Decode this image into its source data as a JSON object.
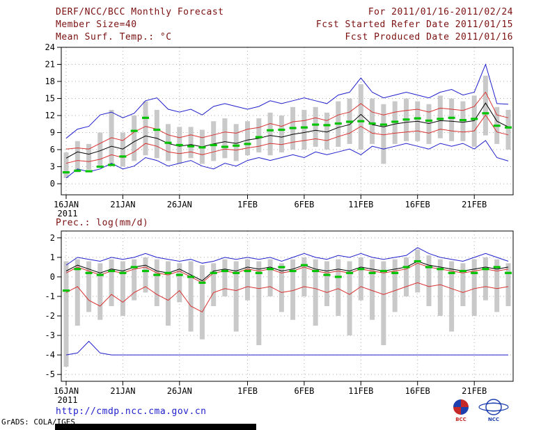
{
  "header": {
    "title": "DERF/NCC/BCC Monthly Forecast",
    "forecast_range": "For 2011/01/16-2011/02/24",
    "member_size": "Member Size=40",
    "refer_date": "Fcst Started Refer Date 2011/01/15",
    "produced_date": "Fcst Produced Date 2011/01/16"
  },
  "charts": {
    "temp_title": "Mean Surf. Temp.: °C",
    "precip_title": "Prec.: log(mm/d)"
  },
  "footer": {
    "url": "http://cmdp.ncc.cma.gov.cn",
    "credit": "GrADS: COLA/IGES",
    "logos": [
      {
        "name": "bcc-logo",
        "label": "BCC"
      },
      {
        "name": "ncc-logo",
        "label": "NCC"
      }
    ]
  },
  "colors": {
    "header_text": "#7c1010",
    "url_text": "#1e1ecc",
    "blue": "#1e1ecc",
    "red": "#d93030",
    "green": "#00c400",
    "black": "#000000",
    "bar": "#c9c9c9",
    "grid": "#aaaaaa"
  },
  "chart_data": [
    {
      "type": "line",
      "title": "Mean Surf. Temp.: °C",
      "ylabel": "°C",
      "n_days": 40,
      "x_tick_labels": [
        "16JAN",
        "21JAN",
        "26JAN",
        "1FEB",
        "6FEB",
        "11FEB",
        "16FEB",
        "21FEB"
      ],
      "x_tick_days": [
        0,
        5,
        10,
        16,
        21,
        26,
        31,
        36
      ],
      "x_year_label": "2011",
      "yticks": [
        0,
        3,
        6,
        9,
        12,
        15,
        18,
        21,
        24
      ],
      "ylim": [
        0,
        24
      ],
      "grid": "dotted",
      "series": [
        {
          "name": "ensemble-max",
          "color": "blue",
          "values": [
            8.0,
            9.6,
            10.1,
            12.1,
            12.6,
            11.6,
            12.4,
            14.6,
            15.1,
            13.1,
            12.6,
            13.1,
            12.1,
            13.6,
            14.1,
            13.6,
            13.1,
            13.6,
            14.6,
            14.1,
            14.6,
            15.1,
            14.6,
            14.1,
            15.6,
            16.1,
            18.6,
            16.1,
            15.1,
            15.6,
            16.1,
            15.6,
            15.1,
            16.1,
            16.6,
            15.6,
            16.1,
            21.0,
            14.1,
            14.0
          ]
        },
        {
          "name": "ensemble-min",
          "color": "blue",
          "values": [
            1.0,
            2.6,
            2.1,
            2.6,
            3.6,
            2.6,
            3.1,
            4.6,
            4.1,
            3.1,
            3.6,
            4.1,
            3.1,
            2.6,
            3.6,
            3.1,
            4.1,
            4.6,
            4.1,
            4.6,
            5.1,
            4.6,
            5.6,
            5.1,
            5.6,
            6.1,
            5.1,
            6.6,
            6.1,
            6.6,
            7.1,
            6.6,
            6.1,
            7.1,
            6.6,
            7.1,
            6.1,
            7.6,
            4.6,
            4.0
          ]
        },
        {
          "name": "upper-quartile",
          "color": "red",
          "values": [
            6.1,
            6.3,
            6.1,
            7.1,
            8.1,
            7.6,
            9.1,
            10.1,
            9.6,
            8.6,
            8.1,
            8.6,
            8.1,
            8.6,
            9.1,
            8.9,
            9.6,
            9.9,
            10.6,
            10.1,
            10.9,
            11.1,
            11.6,
            11.1,
            12.1,
            12.6,
            14.1,
            12.6,
            12.1,
            12.6,
            12.9,
            13.1,
            12.6,
            13.3,
            13.1,
            12.9,
            13.6,
            16.1,
            12.1,
            11.6
          ]
        },
        {
          "name": "lower-quartile",
          "color": "red",
          "values": [
            3.6,
            4.1,
            3.9,
            4.3,
            5.1,
            4.6,
            5.6,
            7.1,
            6.6,
            5.6,
            5.3,
            5.6,
            5.1,
            5.6,
            6.1,
            5.9,
            6.3,
            6.6,
            7.1,
            6.9,
            7.3,
            7.6,
            7.9,
            7.6,
            8.3,
            8.9,
            10.1,
            8.9,
            8.6,
            8.9,
            9.1,
            9.3,
            8.9,
            9.6,
            9.3,
            9.1,
            9.3,
            12.1,
            9.1,
            8.6
          ]
        },
        {
          "name": "ensemble-mean",
          "color": "black",
          "values": [
            4.5,
            5.6,
            5.2,
            5.8,
            6.6,
            6.1,
            7.4,
            8.4,
            8.0,
            7.1,
            6.6,
            6.9,
            6.5,
            7.0,
            7.4,
            7.1,
            7.7,
            8.0,
            8.5,
            8.2,
            8.7,
            9.0,
            9.4,
            9.1,
            9.9,
            10.4,
            12.2,
            10.4,
            10.0,
            10.5,
            10.8,
            11.0,
            10.6,
            11.1,
            11.0,
            10.8,
            11.1,
            14.2,
            11.0,
            10.0
          ]
        },
        {
          "name": "observation",
          "color": "green",
          "style": "dashes",
          "values": [
            2.0,
            2.3,
            2.2,
            3.0,
            3.3,
            4.8,
            9.3,
            11.6,
            9.5,
            7.2,
            6.8,
            6.6,
            6.4,
            6.8,
            6.5,
            6.7,
            7.0,
            8.2,
            9.4,
            9.5,
            9.8,
            9.9,
            10.4,
            10.3,
            10.6,
            10.9,
            11.0,
            10.6,
            10.4,
            10.9,
            11.3,
            11.5,
            11.1,
            11.4,
            11.6,
            11.2,
            11.4,
            12.4,
            10.2,
            9.9
          ]
        }
      ],
      "bars": {
        "name": "ensemble-spread",
        "color": "bar",
        "low": [
          1.0,
          2.0,
          2.5,
          3.0,
          3.5,
          3.0,
          4.0,
          5.0,
          4.5,
          4.0,
          3.5,
          4.5,
          3.5,
          4.0,
          4.5,
          4.0,
          5.0,
          5.5,
          5.0,
          5.5,
          6.0,
          6.0,
          6.5,
          6.0,
          6.5,
          7.0,
          6.0,
          7.0,
          3.5,
          7.0,
          7.5,
          7.5,
          7.0,
          8.0,
          7.5,
          7.5,
          6.5,
          8.5,
          7.0,
          6.0
        ],
        "high": [
          5.5,
          7.5,
          7.0,
          9.0,
          13.0,
          9.0,
          12.0,
          14.5,
          13.0,
          10.5,
          10.0,
          10.0,
          9.5,
          11.0,
          11.5,
          10.5,
          11.0,
          11.5,
          12.5,
          12.0,
          13.5,
          13.0,
          13.5,
          12.5,
          14.5,
          15.0,
          17.5,
          15.0,
          14.0,
          14.5,
          15.0,
          14.5,
          14.0,
          15.5,
          15.0,
          14.5,
          15.5,
          19.0,
          13.5,
          13.0
        ]
      }
    },
    {
      "type": "line",
      "title": "Prec.: log(mm/d)",
      "ylabel": "log(mm/d)",
      "n_days": 40,
      "x_tick_labels": [
        "16JAN",
        "21JAN",
        "26JAN",
        "1FEB",
        "6FEB",
        "11FEB",
        "16FEB",
        "21FEB"
      ],
      "x_tick_days": [
        0,
        5,
        10,
        16,
        21,
        26,
        31,
        36
      ],
      "x_year_label": "2011",
      "yticks": [
        2,
        1,
        0,
        -1,
        -2,
        -3,
        -4,
        -5
      ],
      "ylim": [
        -5,
        2
      ],
      "grid": "dotted",
      "series": [
        {
          "name": "ensemble-max",
          "color": "blue",
          "values": [
            0.6,
            1.0,
            0.9,
            0.8,
            1.0,
            0.9,
            1.0,
            1.2,
            1.0,
            0.9,
            0.8,
            0.9,
            0.7,
            0.8,
            1.0,
            0.9,
            1.0,
            0.9,
            1.0,
            0.8,
            1.0,
            1.2,
            1.0,
            0.9,
            1.1,
            1.0,
            1.2,
            1.0,
            0.9,
            1.0,
            1.1,
            1.5,
            1.2,
            1.0,
            0.9,
            0.8,
            1.0,
            1.2,
            1.0,
            0.8
          ]
        },
        {
          "name": "ensemble-min",
          "color": "blue",
          "values": [
            -4.0,
            -3.9,
            -3.3,
            -3.9,
            -4.0,
            -4.0,
            -4.0,
            -4.0,
            -4.0,
            -4.0,
            -4.0,
            -4.0,
            -4.0,
            -4.0,
            -4.0,
            -4.0,
            -4.0,
            -4.0,
            -4.0,
            -4.0,
            -4.0,
            -4.0,
            -4.0,
            -4.0,
            -4.0,
            -4.0,
            -4.0,
            -4.0,
            -4.0,
            -4.0,
            -4.0,
            -4.0,
            -4.0,
            -4.0,
            -4.0,
            -4.0,
            -4.0,
            -4.0,
            -4.0,
            -4.0
          ]
        },
        {
          "name": "upper-quartile",
          "color": "red",
          "values": [
            0.2,
            0.5,
            0.3,
            0.1,
            0.3,
            0.2,
            0.4,
            0.5,
            0.2,
            0.1,
            0.3,
            0.0,
            -0.3,
            0.2,
            0.3,
            0.2,
            0.4,
            0.3,
            0.4,
            0.2,
            0.3,
            0.5,
            0.3,
            0.2,
            0.3,
            0.2,
            0.4,
            0.3,
            0.2,
            0.3,
            0.4,
            0.7,
            0.5,
            0.4,
            0.3,
            0.2,
            0.3,
            0.4,
            0.3,
            0.4
          ]
        },
        {
          "name": "lower-quartile",
          "color": "red",
          "values": [
            -0.8,
            -0.5,
            -1.2,
            -1.5,
            -0.9,
            -1.3,
            -0.8,
            -0.5,
            -0.9,
            -1.2,
            -0.7,
            -1.5,
            -1.8,
            -0.8,
            -0.6,
            -0.7,
            -0.5,
            -0.6,
            -0.5,
            -0.8,
            -0.7,
            -0.5,
            -0.6,
            -0.8,
            -0.6,
            -0.9,
            -0.5,
            -0.7,
            -0.9,
            -0.7,
            -0.5,
            -0.3,
            -0.5,
            -0.4,
            -0.6,
            -0.8,
            -0.6,
            -0.5,
            -0.6,
            -0.5
          ]
        },
        {
          "name": "ensemble-mean",
          "color": "black",
          "values": [
            0.3,
            0.6,
            0.4,
            0.2,
            0.4,
            0.3,
            0.5,
            0.6,
            0.3,
            0.2,
            0.4,
            0.1,
            -0.2,
            0.3,
            0.4,
            0.3,
            0.5,
            0.4,
            0.5,
            0.3,
            0.4,
            0.6,
            0.4,
            0.3,
            0.4,
            0.3,
            0.5,
            0.4,
            0.3,
            0.4,
            0.5,
            0.8,
            0.6,
            0.5,
            0.4,
            0.3,
            0.4,
            0.5,
            0.4,
            0.5
          ]
        },
        {
          "name": "observation",
          "color": "green",
          "style": "dashes",
          "values": [
            -0.7,
            0.4,
            0.2,
            0.1,
            0.3,
            0.2,
            0.5,
            0.3,
            0.1,
            0.2,
            0.1,
            0.0,
            -0.3,
            0.2,
            0.3,
            0.2,
            0.3,
            0.2,
            0.4,
            0.5,
            0.3,
            0.6,
            0.3,
            0.1,
            0.0,
            0.2,
            0.4,
            0.2,
            0.3,
            0.2,
            0.5,
            0.8,
            0.5,
            0.4,
            0.2,
            0.3,
            0.2,
            0.4,
            0.5,
            0.2
          ]
        }
      ],
      "bars": {
        "name": "ensemble-spread",
        "color": "bar",
        "low": [
          -4.6,
          -2.5,
          -1.8,
          -2.2,
          -1.5,
          -2.0,
          -1.2,
          -0.8,
          -1.5,
          -2.5,
          -1.3,
          -2.8,
          -3.2,
          -1.5,
          -1.0,
          -2.8,
          -1.2,
          -3.5,
          -1.0,
          -1.8,
          -2.2,
          -1.0,
          -2.5,
          -1.5,
          -2.0,
          -3.0,
          -1.2,
          -2.2,
          -3.5,
          -1.8,
          -1.0,
          -0.8,
          -1.5,
          -2.0,
          -2.8,
          -1.5,
          -2.0,
          -1.2,
          -1.8,
          -1.5
        ],
        "high": [
          0.8,
          0.9,
          0.8,
          0.7,
          0.9,
          0.8,
          0.9,
          1.0,
          0.9,
          0.8,
          0.7,
          0.8,
          0.6,
          0.7,
          0.9,
          0.8,
          0.9,
          0.8,
          0.9,
          0.7,
          0.9,
          1.0,
          0.9,
          0.8,
          0.9,
          0.8,
          1.0,
          0.9,
          0.8,
          0.9,
          1.0,
          1.4,
          1.1,
          0.9,
          0.8,
          0.7,
          0.9,
          1.0,
          0.9,
          0.7
        ]
      }
    }
  ]
}
